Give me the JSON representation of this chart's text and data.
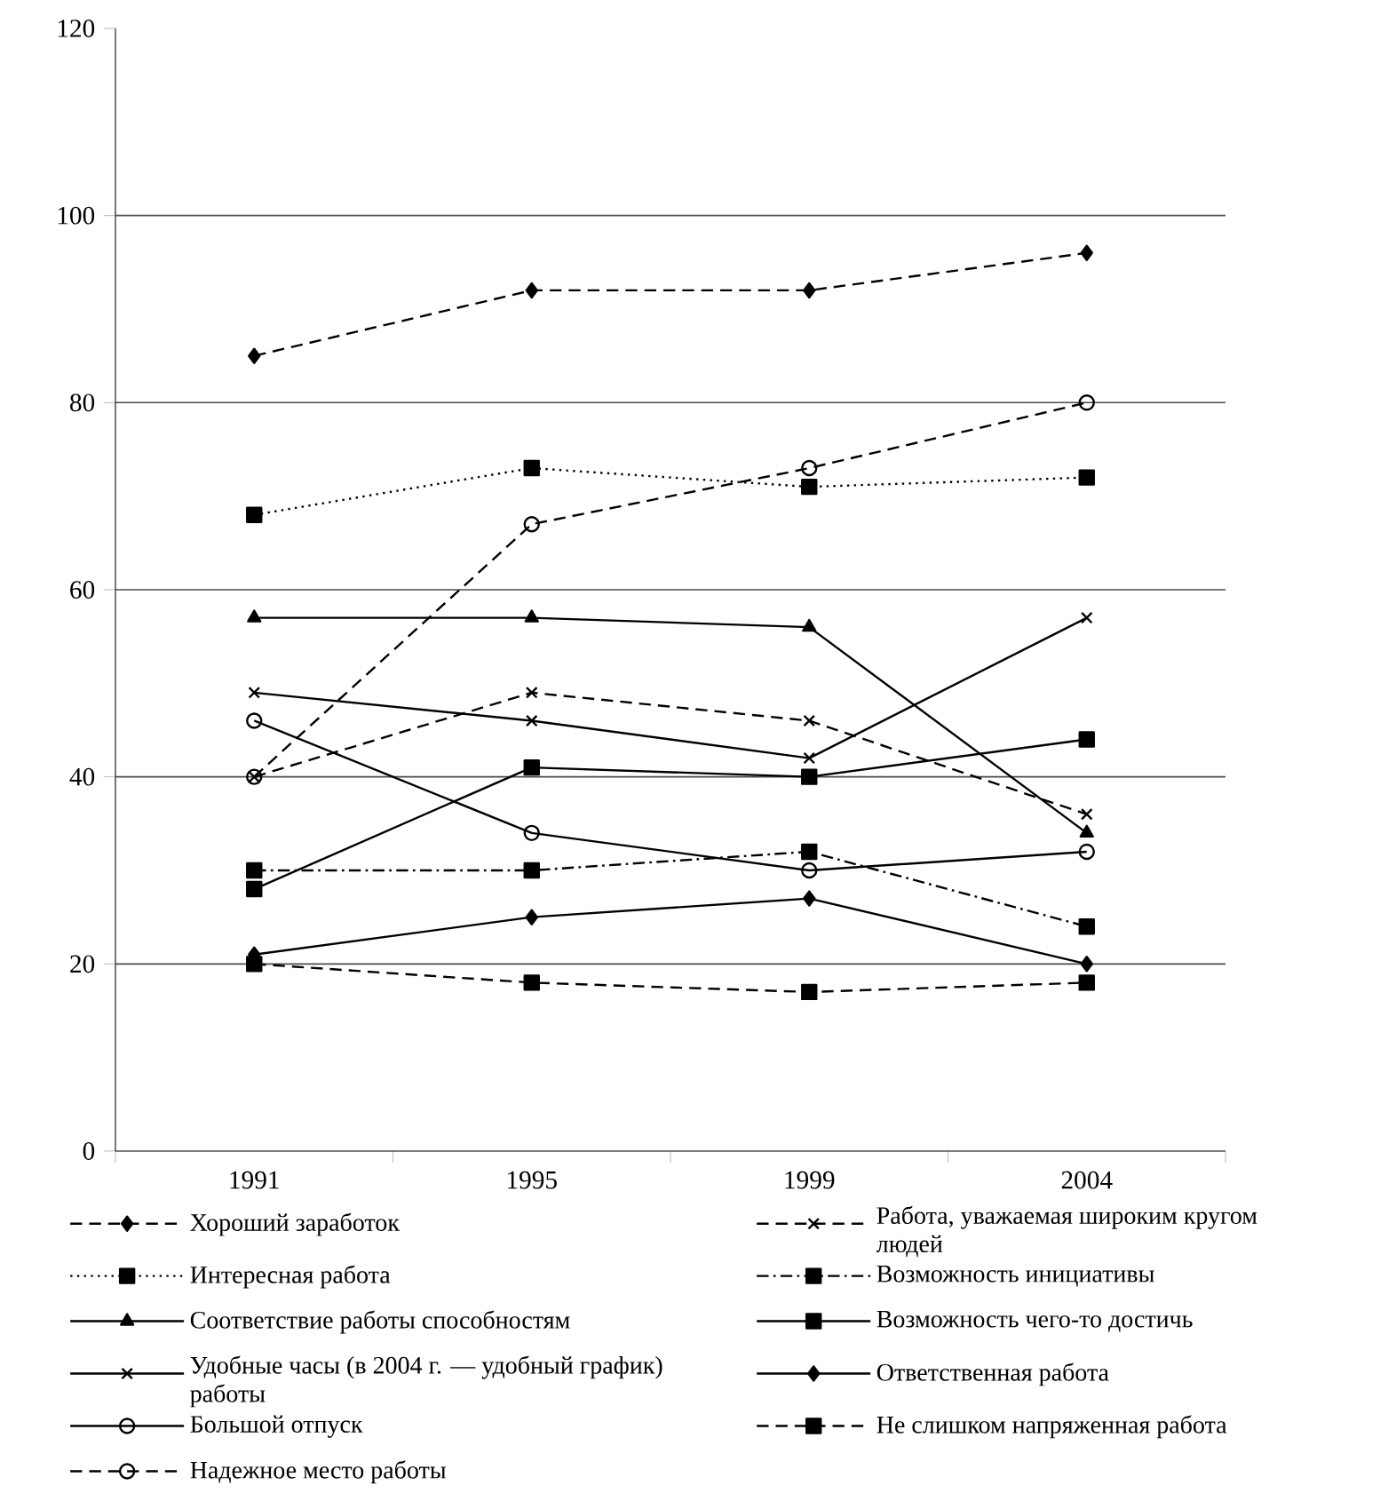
{
  "chart_data": {
    "type": "line",
    "categories": [
      "1991",
      "1995",
      "1999",
      "2004"
    ],
    "ylim": [
      0,
      120
    ],
    "yticks": [
      0,
      20,
      40,
      60,
      80,
      100,
      120
    ],
    "grid": "y",
    "legend": "bottom",
    "series": [
      {
        "name": "Хороший заработок",
        "color": "#000000",
        "marker": "diamond",
        "line_style": "dashed",
        "values": [
          85,
          92,
          92,
          96
        ]
      },
      {
        "name": "Интересная работа",
        "color": "#000000",
        "marker": "square",
        "line_style": "dotted",
        "values": [
          68,
          73,
          71,
          72
        ]
      },
      {
        "name": "Соответствие работы способностям",
        "color": "#000000",
        "marker": "triangle",
        "line_style": "solid",
        "values": [
          57,
          57,
          56,
          34
        ]
      },
      {
        "name": "Удобные часы (в 2004 г. — удобный график) работы",
        "color": "#000000",
        "marker": "cross",
        "line_style": "solid",
        "values": [
          49,
          46,
          42,
          57
        ]
      },
      {
        "name": "Большой отпуск",
        "color": "#000000",
        "marker": "circle",
        "line_style": "solid",
        "values": [
          46,
          34,
          30,
          32
        ]
      },
      {
        "name": "Надежное место работы",
        "color": "#000000",
        "marker": "circle",
        "line_style": "dashed",
        "values": [
          40,
          67,
          73,
          80
        ]
      },
      {
        "name": "Работа, уважаемая широким кругом людей",
        "color": "#000000",
        "marker": "cross",
        "line_style": "dashed",
        "values": [
          40,
          49,
          46,
          36
        ]
      },
      {
        "name": "Возможность инициативы",
        "color": "#000000",
        "marker": "square",
        "line_style": "dashdotted",
        "values": [
          30,
          30,
          32,
          24
        ]
      },
      {
        "name": "Возможность чего-то достичь",
        "color": "#000000",
        "marker": "square",
        "line_style": "solid",
        "values": [
          28,
          41,
          40,
          44
        ]
      },
      {
        "name": "Ответственная работа",
        "color": "#000000",
        "marker": "diamond",
        "line_style": "solid",
        "values": [
          21,
          25,
          27,
          20
        ]
      },
      {
        "name": "Не слишком напряженная работа",
        "color": "#000000",
        "marker": "square",
        "line_style": "dashed",
        "values": [
          20,
          18,
          17,
          18
        ]
      }
    ]
  }
}
